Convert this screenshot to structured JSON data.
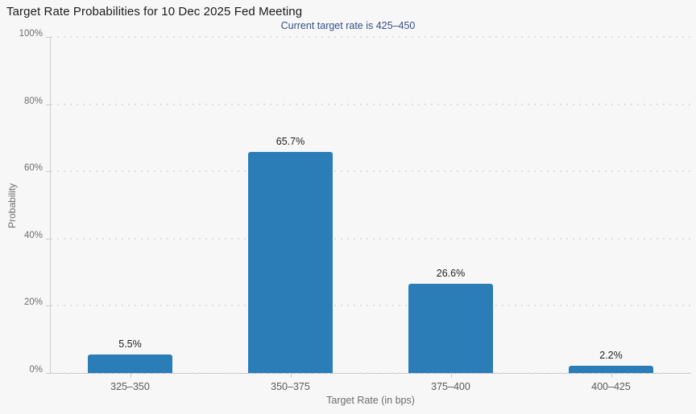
{
  "page": {
    "background_color": "#f7f7f7"
  },
  "header": {
    "title": "Target Rate Probabilities for 10 Dec 2025 Fed Meeting",
    "subtitle": "Current target rate is 425–450",
    "subtitle_color": "#35508b"
  },
  "chart_data": {
    "type": "bar",
    "title": "Target Rate Probabilities for 10 Dec 2025 Fed Meeting",
    "subtitle": "Current target rate is 425–450",
    "categories": [
      "325–350",
      "350–375",
      "375–400",
      "400–425"
    ],
    "values": [
      5.5,
      65.7,
      26.6,
      2.2
    ],
    "value_labels": [
      "5.5%",
      "65.7%",
      "26.6%",
      "2.2%"
    ],
    "xlabel": "Target Rate (in bps)",
    "ylabel": "Probability",
    "ylim": [
      0,
      100
    ],
    "yticks": [
      0,
      20,
      40,
      60,
      80,
      100
    ],
    "ytick_labels": [
      "0%",
      "20%",
      "40%",
      "60%",
      "80%",
      "100%"
    ],
    "grid": "horizontal-dotted",
    "legend": "none",
    "bar_color": "#2b7db7",
    "axis_color": "#c9c9c9",
    "gridline_color": "#dedede"
  }
}
